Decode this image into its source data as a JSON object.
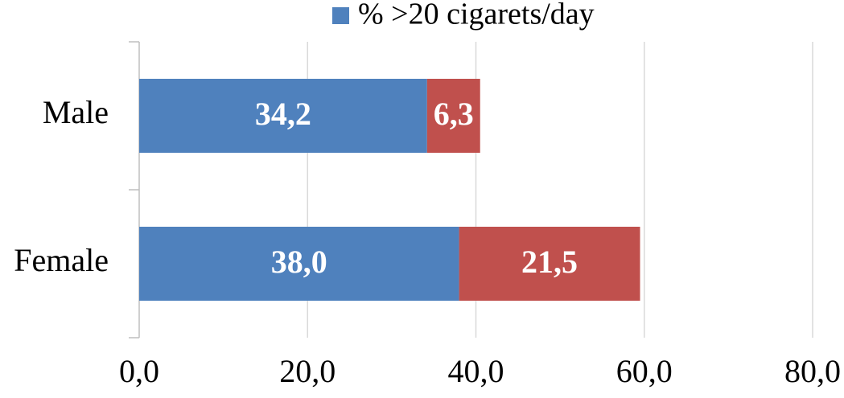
{
  "chart_data": {
    "type": "stacked-barh",
    "categories": [
      "Male",
      "Female"
    ],
    "series": [
      {
        "name": "% >20 cigarets/day",
        "color": "#4f81bd",
        "values": [
          34.2,
          38.0
        ],
        "value_labels": [
          "34,2",
          "38,0"
        ]
      },
      {
        "color": "#c0504d",
        "values": [
          6.3,
          21.5
        ],
        "value_labels": [
          "6,3",
          "21,5"
        ]
      }
    ],
    "xlim": [
      0,
      80
    ],
    "xticks": [
      {
        "value": 0,
        "label": "0,0"
      },
      {
        "value": 20,
        "label": "20,0"
      },
      {
        "value": 40,
        "label": "40,0"
      },
      {
        "value": 60,
        "label": "60,0"
      },
      {
        "value": 80,
        "label": "80,0"
      }
    ],
    "grid": true,
    "legend": "top"
  }
}
